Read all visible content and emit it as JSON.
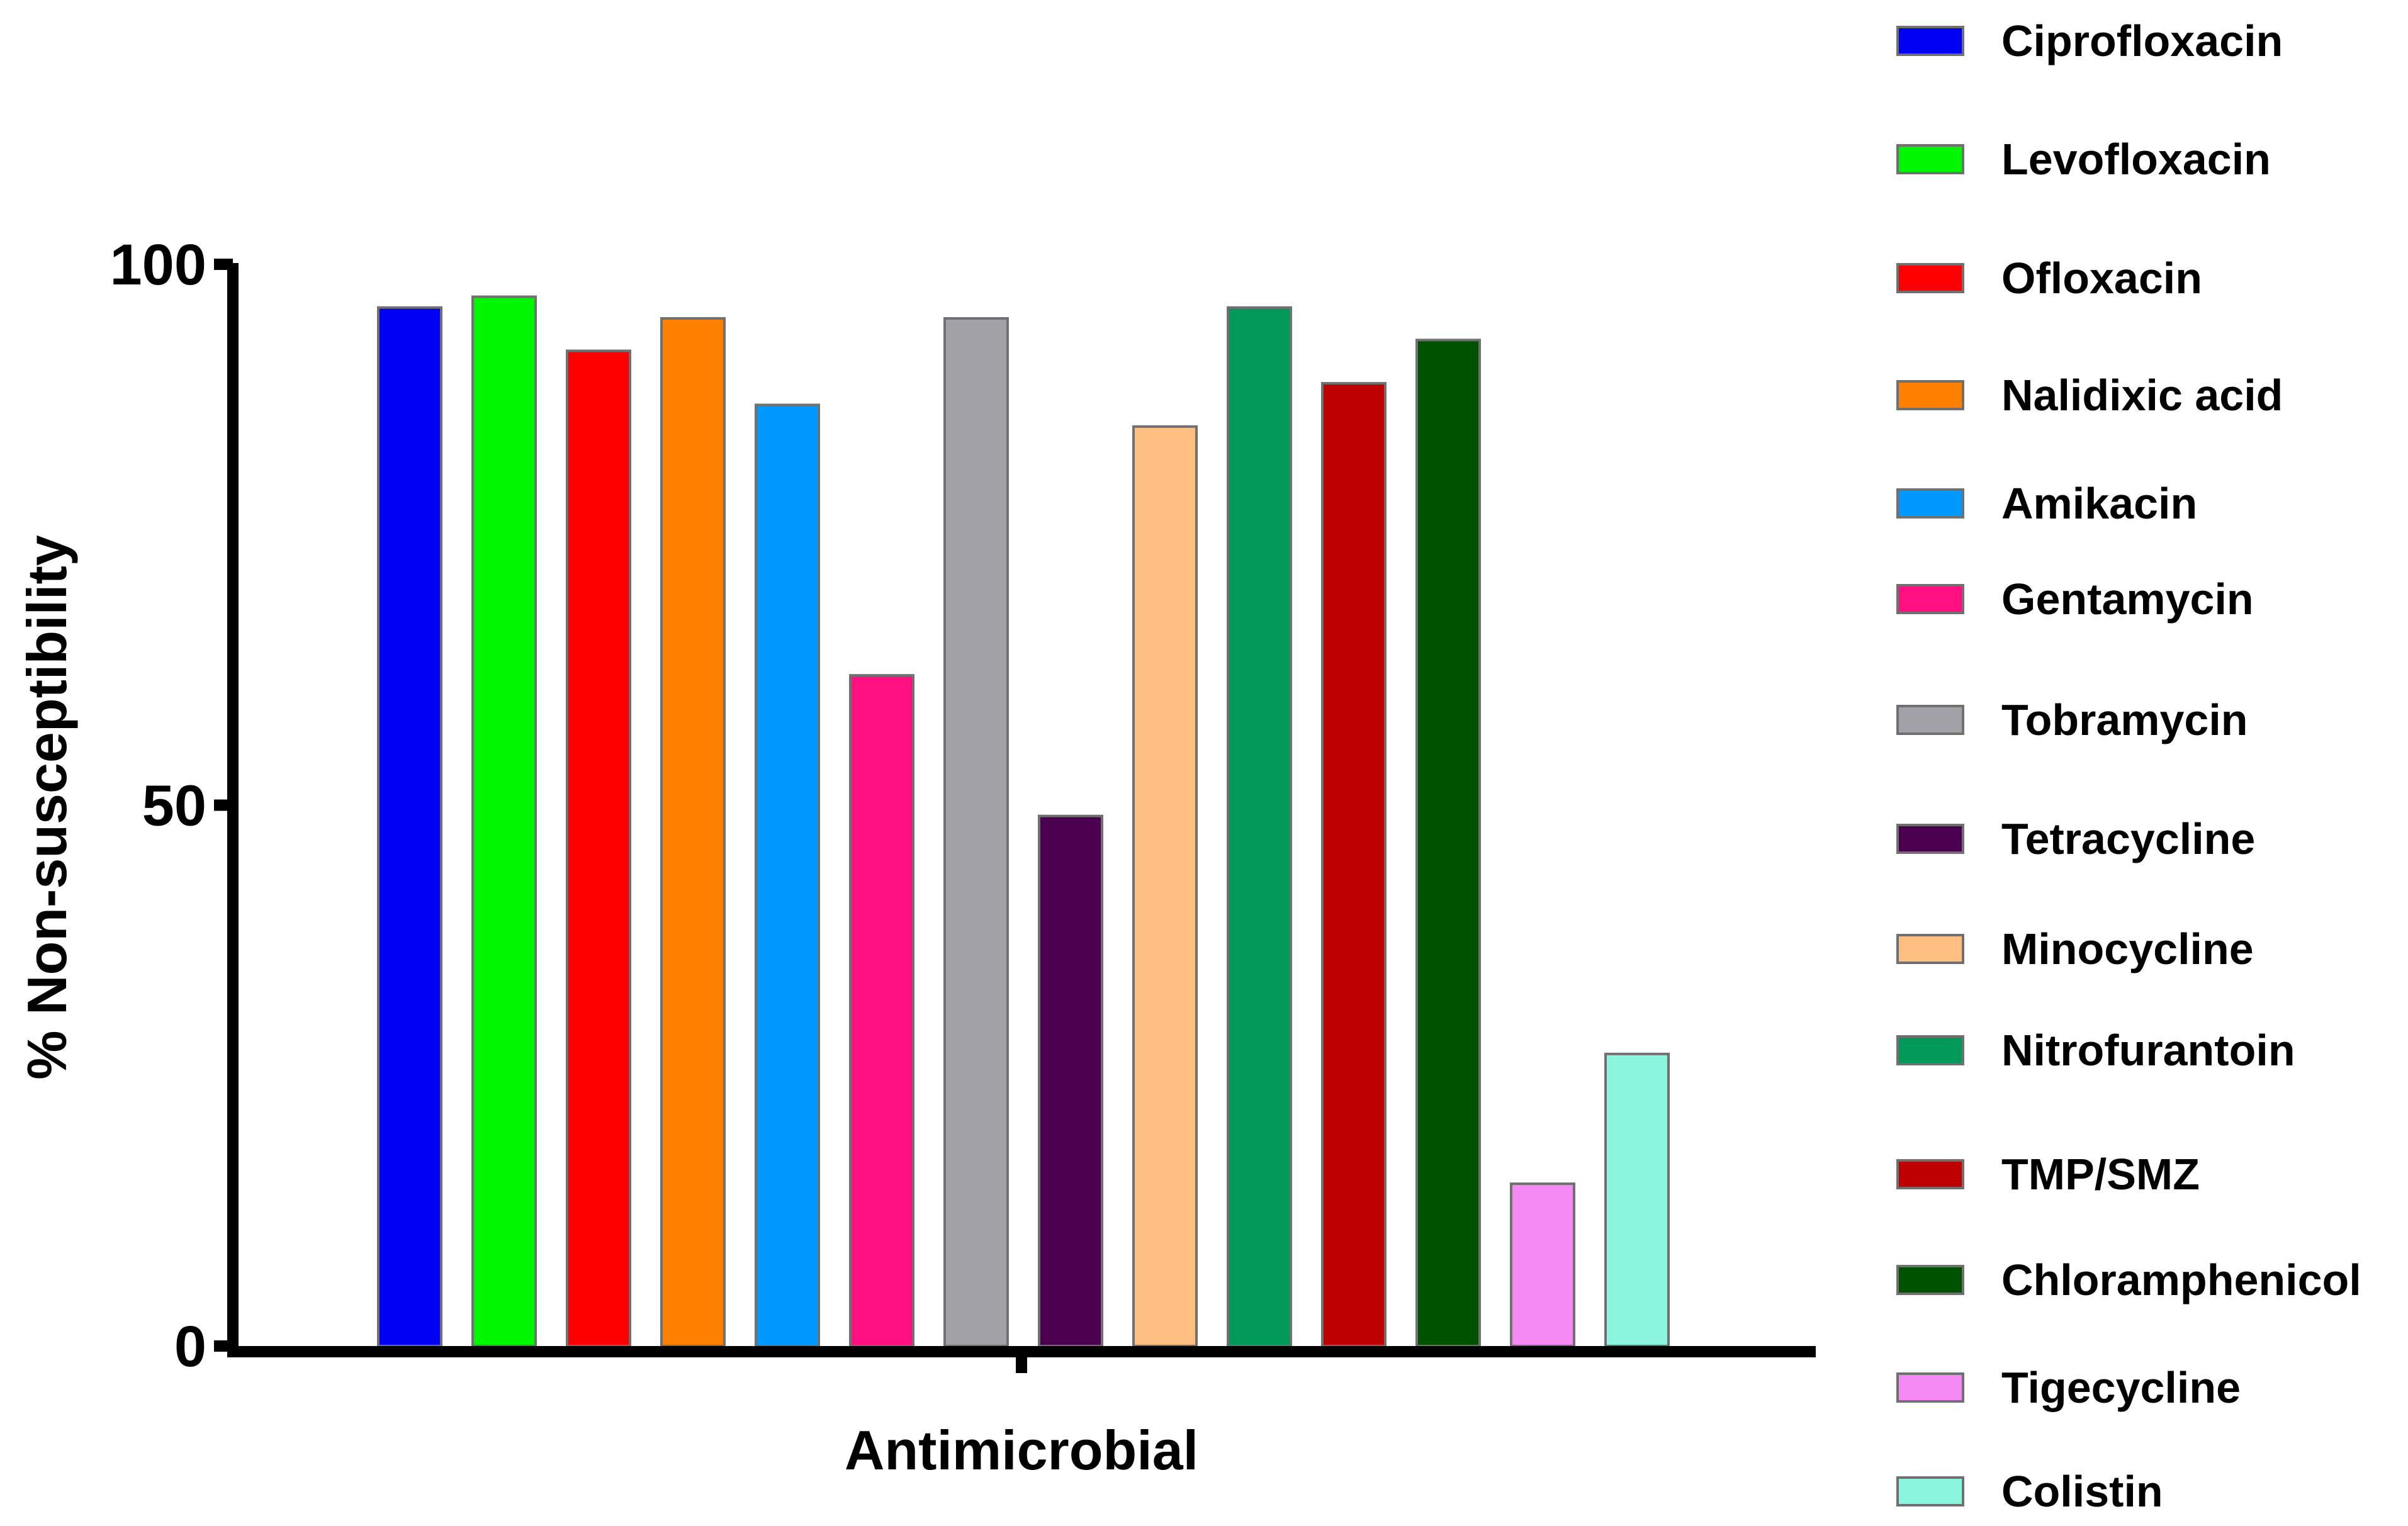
{
  "chart_data": {
    "type": "bar",
    "title": "",
    "xlabel": "Antimicrobial",
    "ylabel": "% Non-susceptibility",
    "ylim": [
      0,
      100
    ],
    "yticks": [
      "0",
      "50",
      "100"
    ],
    "grid": false,
    "legend_position": "right",
    "categories": [
      "Ciprofloxacin",
      "Levofloxacin",
      "Ofloxacin",
      "Nalidixic acid",
      "Amikacin",
      "Gentamycin",
      "Tobramycin",
      "Tetracycline",
      "Minocycline",
      "Nitrofurantoin",
      "TMP/SMZ",
      "Chloramphenicol",
      "Tigecycline",
      "Colistin"
    ],
    "values": [
      96,
      97,
      92,
      95,
      87,
      62,
      95,
      49,
      85,
      96,
      89,
      93,
      15,
      27
    ],
    "colors": [
      "#0000f5",
      "#00f500",
      "#ff0000",
      "#ff8000",
      "#0099ff",
      "#ff0f80",
      "#a3a1a8",
      "#4a004f",
      "#ffbf80",
      "#009959",
      "#bf0000",
      "#005200",
      "#f58af5",
      "#8cf5de"
    ]
  }
}
